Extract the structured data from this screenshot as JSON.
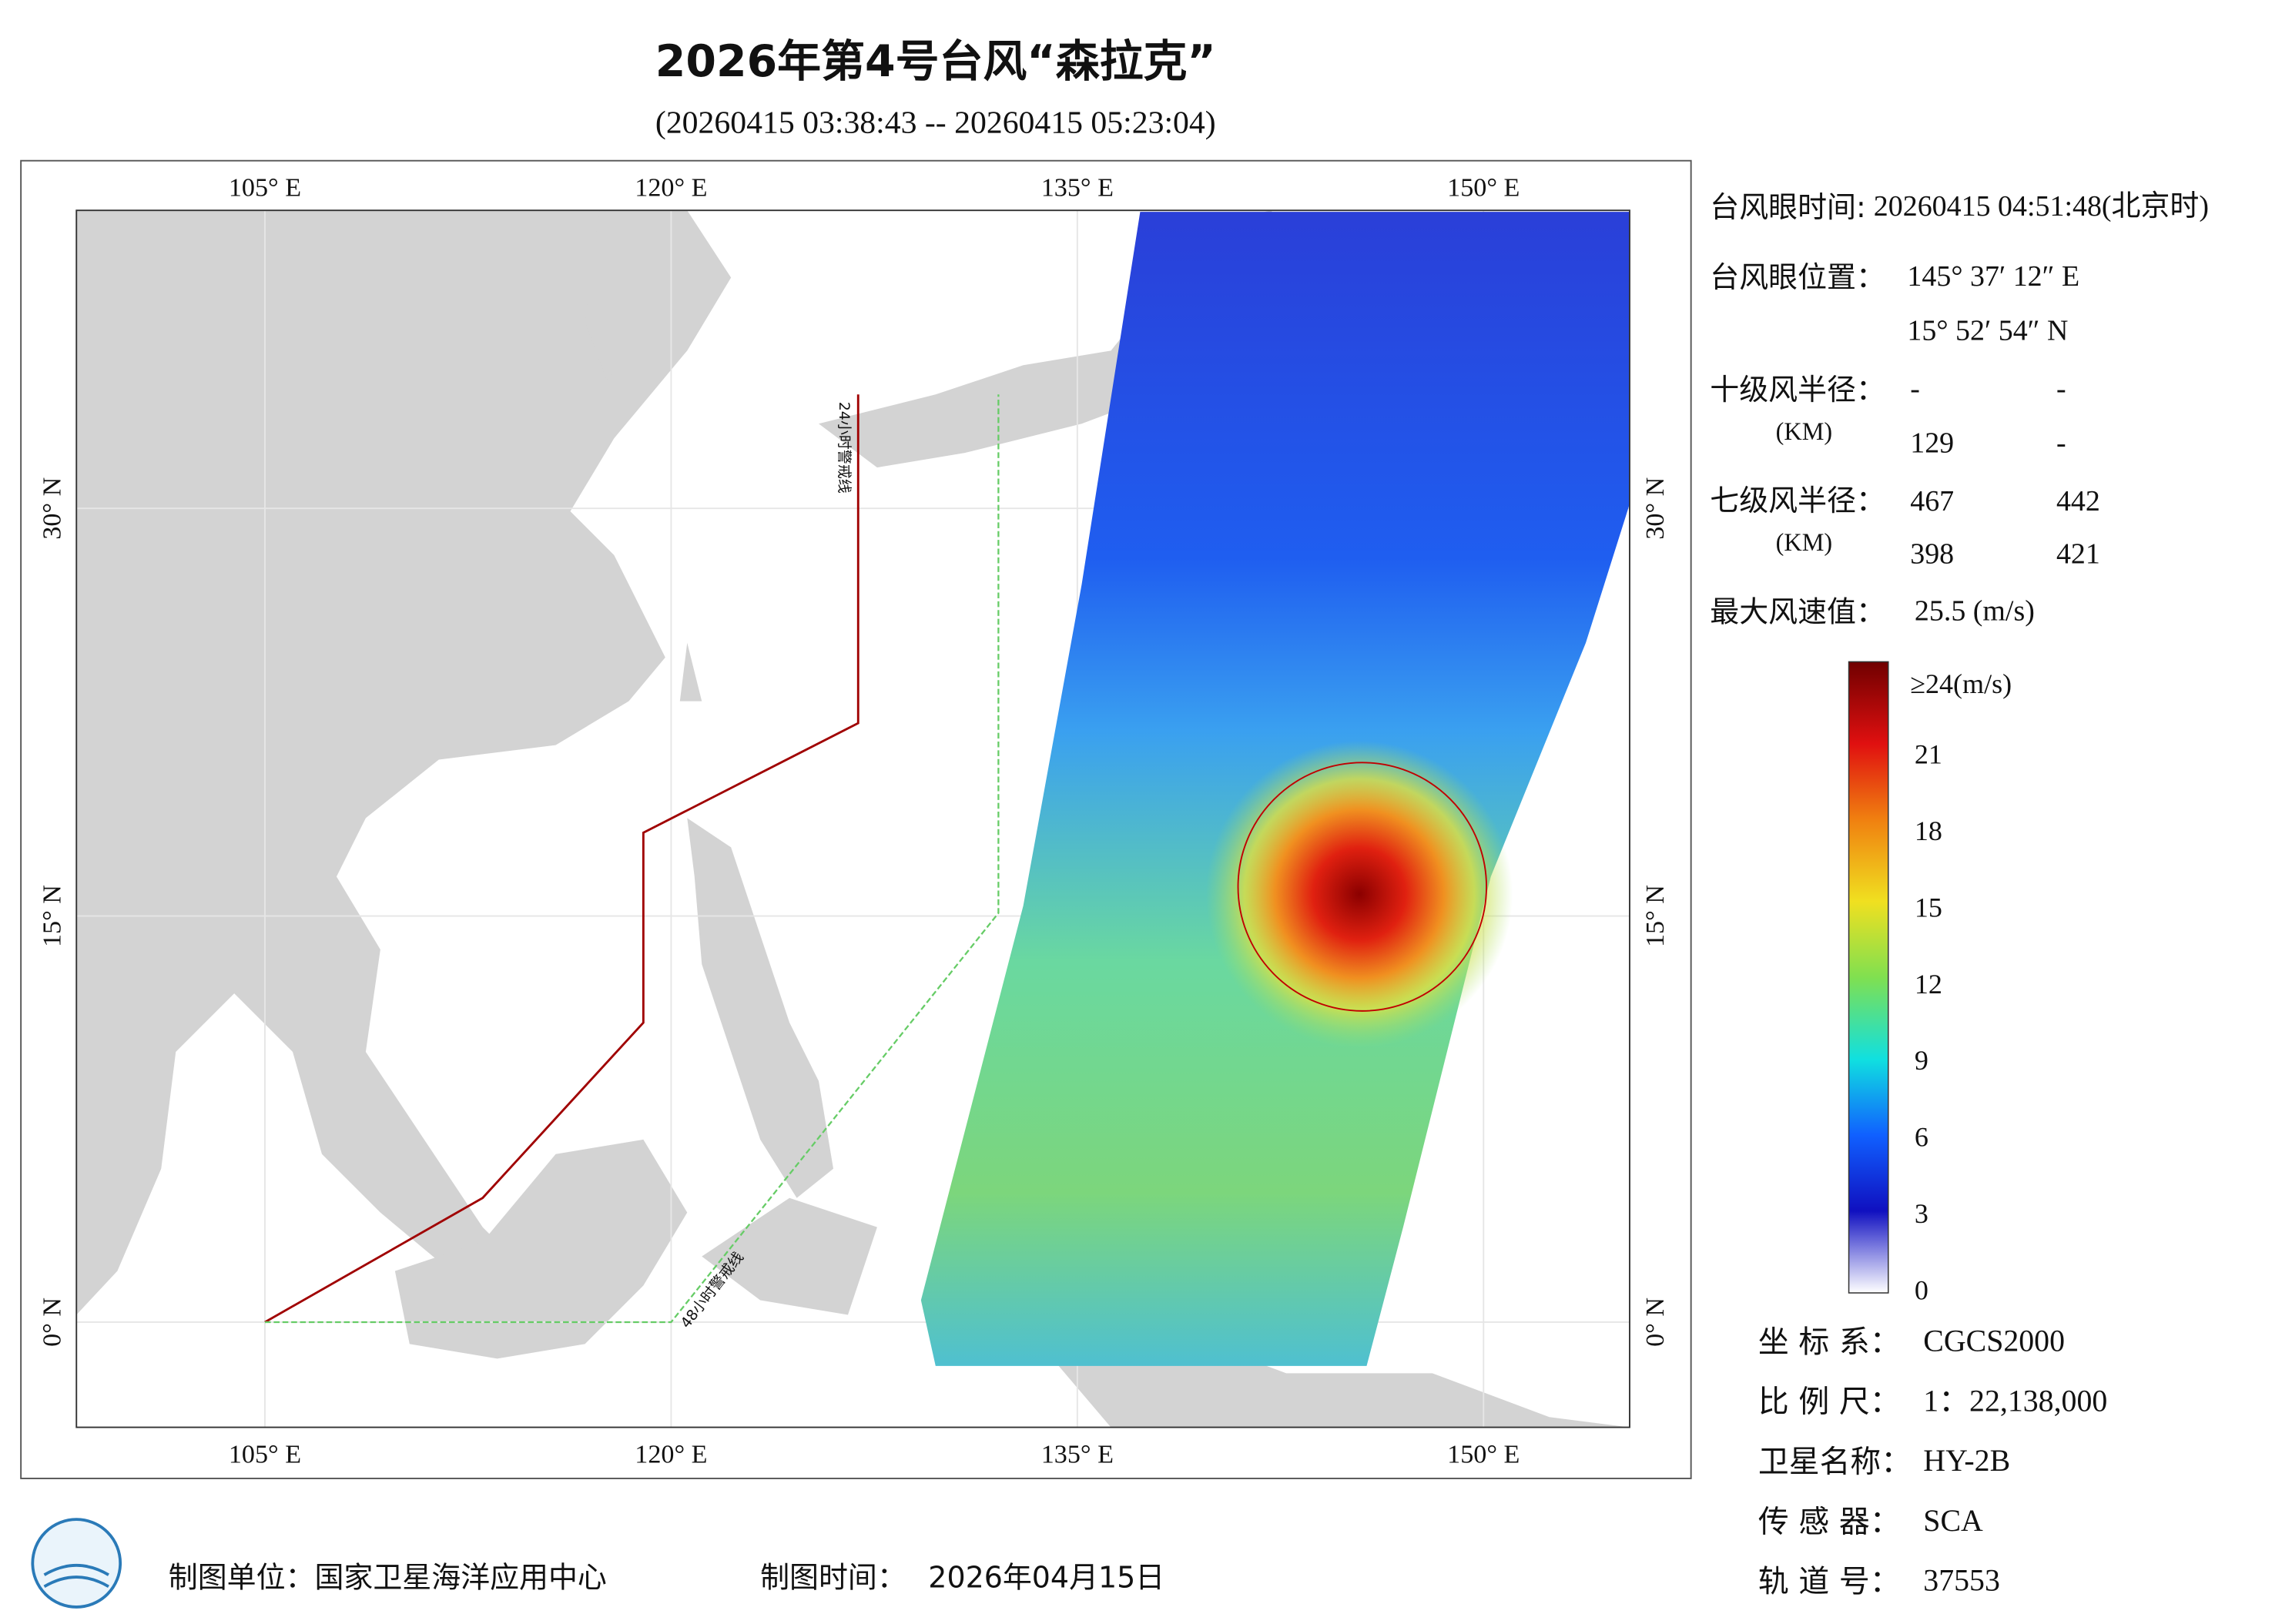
{
  "header": {
    "title": "2026年第4号台风“森拉克”",
    "subtitle": "(20260415 03:38:43 -- 20260415 05:23:04)"
  },
  "map": {
    "lon_labels": [
      "105° E",
      "120° E",
      "135° E",
      "150° E"
    ],
    "lat_labels": [
      "30° N",
      "15° N",
      "0° N"
    ],
    "warning_lines": [
      "24小时警戒线",
      "48小时警戒线"
    ]
  },
  "info": {
    "eye_time": {
      "label": "台风眼时间:",
      "value": "20260415 04:51:48(北京时)"
    },
    "eye_position": {
      "label": "台风眼位置：",
      "values": [
        "145° 37′ 12″ E",
        "15° 52′ 54″ N"
      ]
    },
    "radius_10": {
      "label": "十级风半径：",
      "unit": "(KM)",
      "values": [
        [
          "-",
          "-"
        ],
        [
          "129",
          "-"
        ]
      ]
    },
    "radius_7": {
      "label": "七级风半径：",
      "unit": "(KM)",
      "values": [
        [
          "467",
          "442"
        ],
        [
          "398",
          "421"
        ]
      ]
    },
    "max_wind": {
      "label": "最大风速值：",
      "value": "25.5 (m/s)"
    }
  },
  "colorbar": {
    "top_label": "≥24(m/s)",
    "ticks": [
      0,
      3,
      6,
      9,
      12,
      15,
      18,
      21
    ]
  },
  "meta": [
    {
      "label": "坐 标 系：",
      "value": "CGCS2000"
    },
    {
      "label": "比 例 尺：",
      "value": "1：22,138,000"
    },
    {
      "label": "卫星名称：",
      "value": "HY-2B"
    },
    {
      "label": "传 感 器：",
      "value": "SCA"
    },
    {
      "label": "轨 道 号：",
      "value": "37553"
    }
  ],
  "footer": {
    "unit": "制图单位：国家卫星海洋应用中心",
    "time_label": "制图时间：",
    "time_value": "2026年04月15日"
  }
}
